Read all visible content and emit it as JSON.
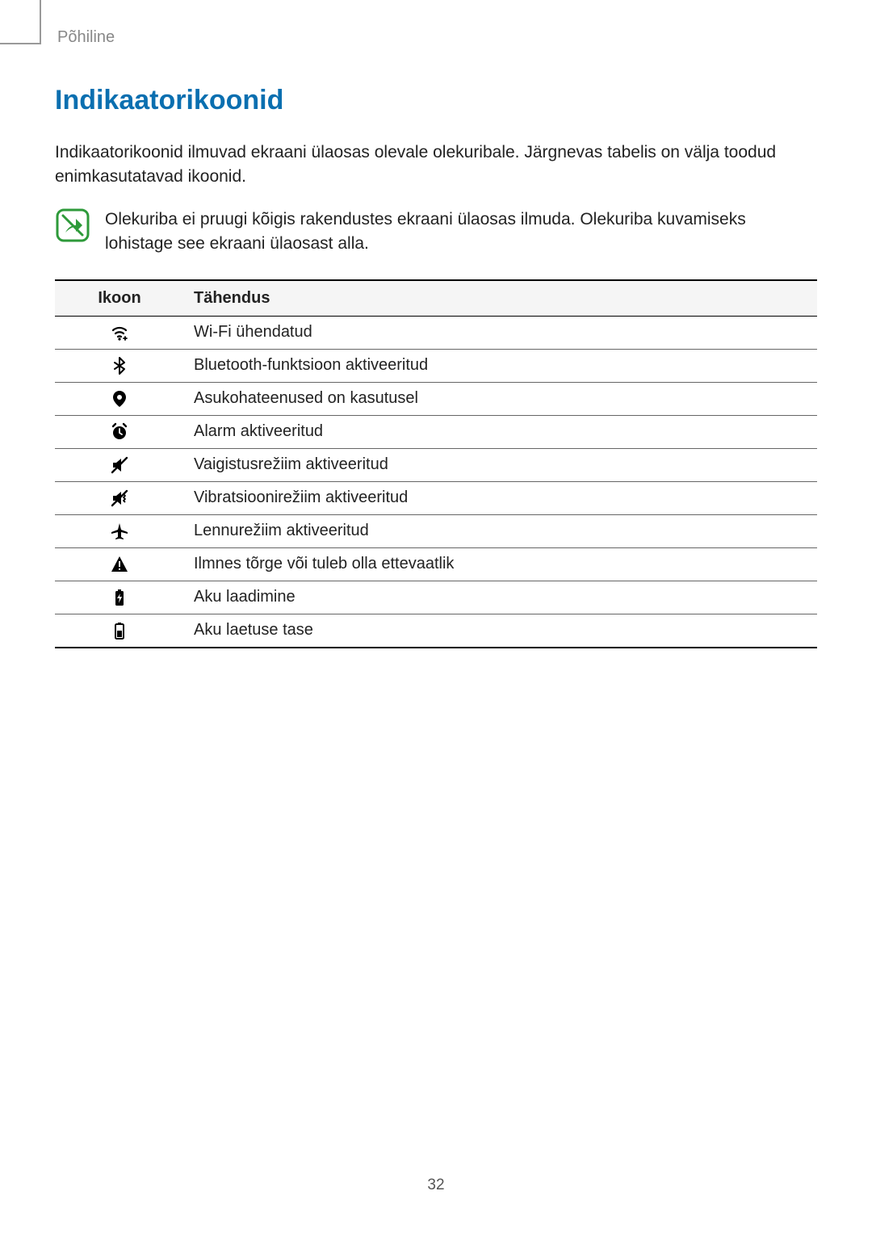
{
  "breadcrumb": "Põhiline",
  "heading": "Indikaatorikoonid",
  "heading_color": "#0a6fb0",
  "intro": "Indikaatorikoonid ilmuvad ekraani ülaosas olevale olekuribale. Järgnevas tabelis on välja toodud enimkasutatavad ikoonid.",
  "note_text": "Olekuriba ei pruugi kõigis rakendustes ekraani ülaosas ilmuda. Olekuriba kuvamiseks lohistage see ekraani ülaosast alla.",
  "note_icon_stroke": "#2e9a3a",
  "table": {
    "header_icon": "Ikoon",
    "header_meaning": "Tähendus",
    "header_bg": "#f5f5f5",
    "border_color": "#000000",
    "row_border_color": "#666666",
    "icon_fill": "#000000",
    "rows": [
      {
        "icon": "wifi-icon",
        "meaning": "Wi-Fi ühendatud"
      },
      {
        "icon": "bluetooth-icon",
        "meaning": "Bluetooth-funktsioon aktiveeritud"
      },
      {
        "icon": "location-icon",
        "meaning": "Asukohateenused on kasutusel"
      },
      {
        "icon": "alarm-icon",
        "meaning": "Alarm aktiveeritud"
      },
      {
        "icon": "mute-icon",
        "meaning": "Vaigistusrežiim aktiveeritud"
      },
      {
        "icon": "vibrate-icon",
        "meaning": "Vibratsioonirežiim aktiveeritud"
      },
      {
        "icon": "airplane-icon",
        "meaning": "Lennurežiim aktiveeritud"
      },
      {
        "icon": "warning-icon",
        "meaning": "Ilmnes tõrge või tuleb olla ettevaatlik"
      },
      {
        "icon": "charging-icon",
        "meaning": "Aku laadimine"
      },
      {
        "icon": "battery-icon",
        "meaning": "Aku laetuse tase"
      }
    ]
  },
  "page_number": "32"
}
